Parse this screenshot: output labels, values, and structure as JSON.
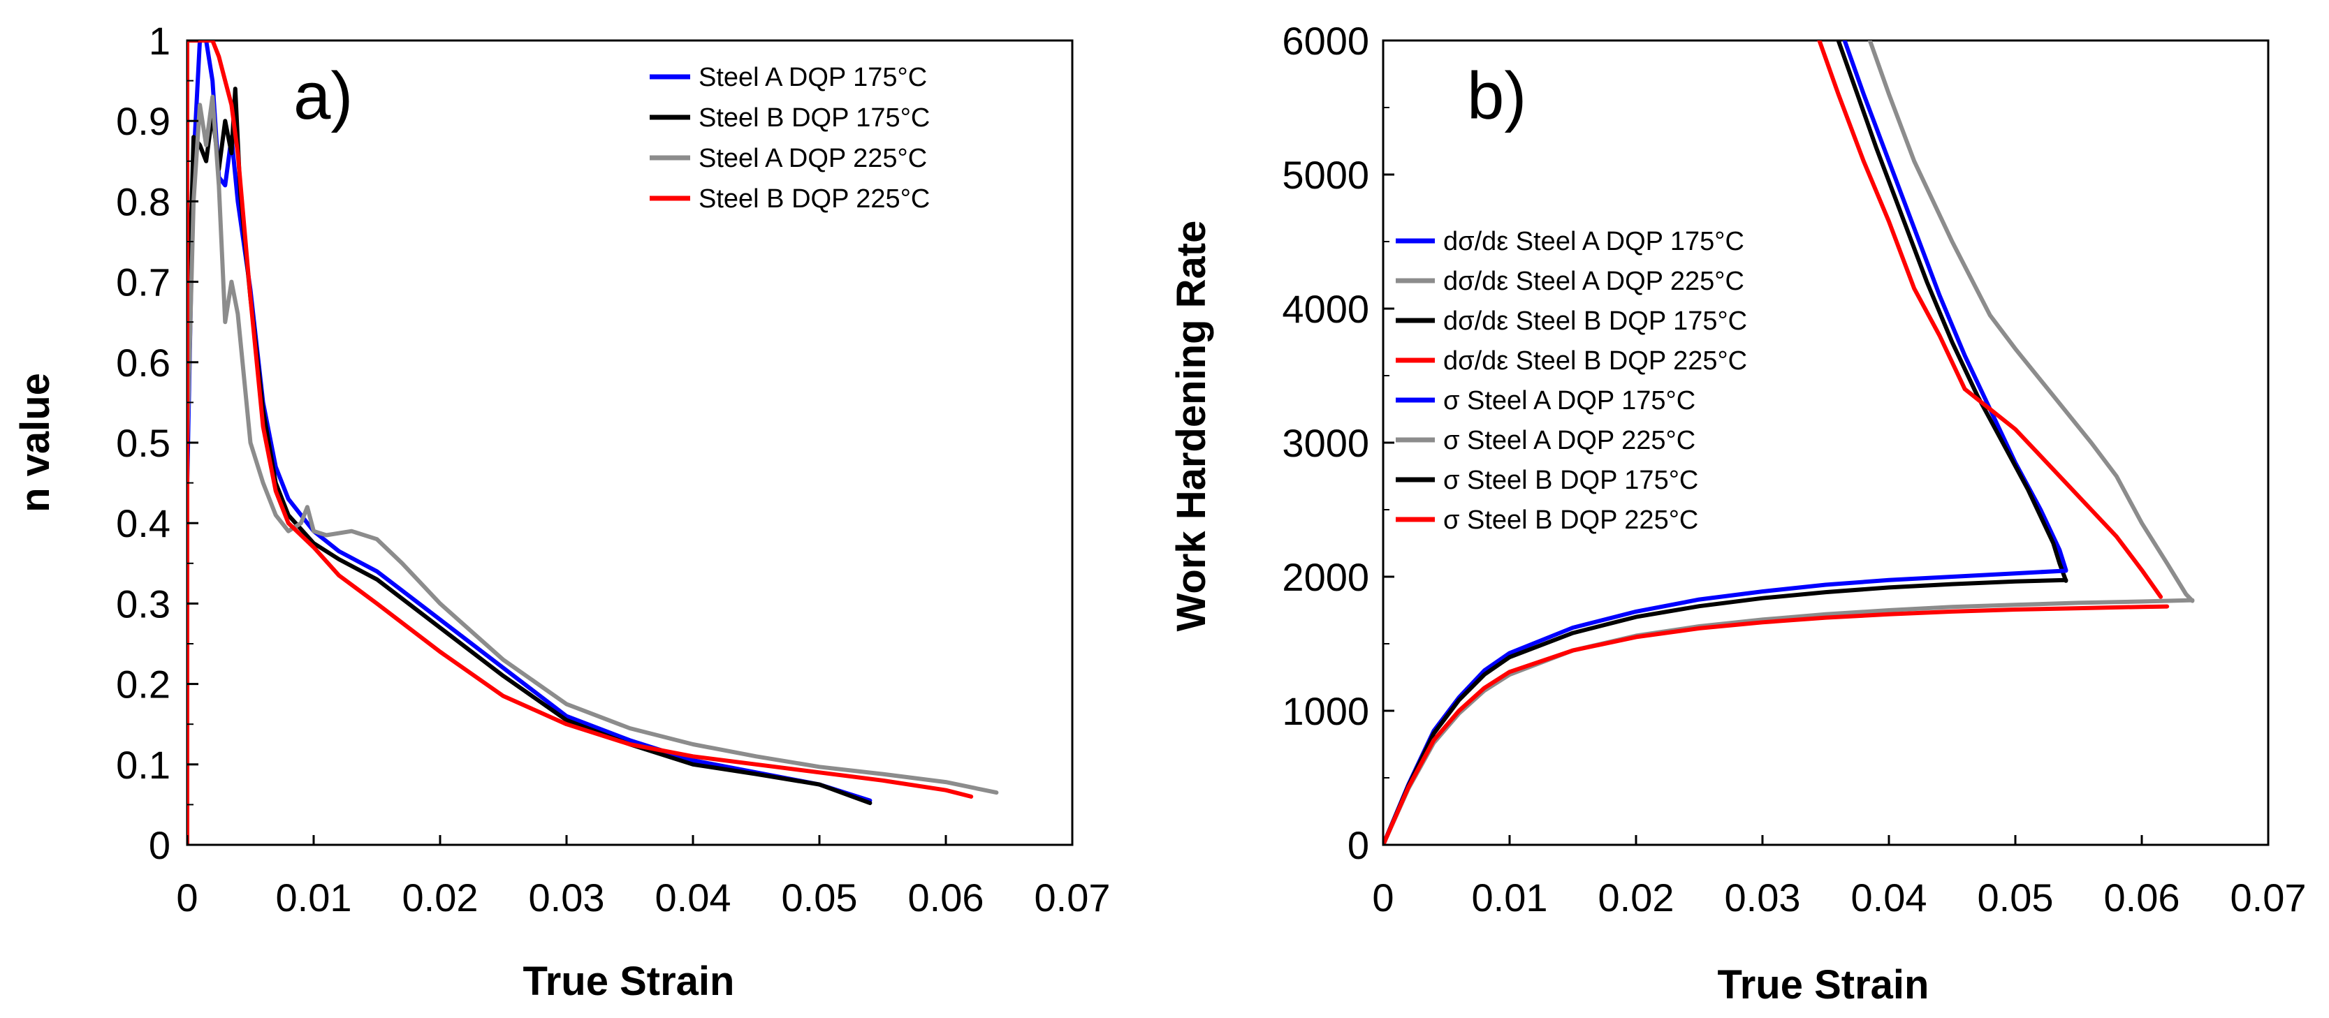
{
  "chart_data": [
    {
      "type": "line",
      "panel_label": "a)",
      "xlabel": "True Strain",
      "ylabel": "n value",
      "xlim": [
        0,
        0.07
      ],
      "ylim": [
        0,
        1
      ],
      "x_ticks": [
        0,
        0.01,
        0.02,
        0.03,
        0.04,
        0.05,
        0.06,
        0.07
      ],
      "x_tick_labels": [
        "0",
        "0.01",
        "0.02",
        "0.03",
        "0.04",
        "0.05",
        "0.06",
        "0.07"
      ],
      "y_ticks": [
        0,
        0.1,
        0.2,
        0.3,
        0.4,
        0.5,
        0.6,
        0.7,
        0.8,
        0.9,
        1
      ],
      "y_tick_labels": [
        "0",
        "0.1",
        "0.2",
        "0.3",
        "0.4",
        "0.5",
        "0.6",
        "0.7",
        "0.8",
        "0.9",
        "1"
      ],
      "legend_position": "top-right",
      "grid": false,
      "series": [
        {
          "name": "Steel A DQP 175°C",
          "color": "#0000ff",
          "points": [
            [
              0,
              0.45
            ],
            [
              0.0005,
              0.85
            ],
            [
              0.001,
              1.0
            ],
            [
              0.0015,
              1.0
            ],
            [
              0.002,
              0.95
            ],
            [
              0.0025,
              0.83
            ],
            [
              0.003,
              0.82
            ],
            [
              0.0035,
              0.88
            ],
            [
              0.004,
              0.8
            ],
            [
              0.005,
              0.69
            ],
            [
              0.006,
              0.55
            ],
            [
              0.007,
              0.47
            ],
            [
              0.008,
              0.43
            ],
            [
              0.01,
              0.39
            ],
            [
              0.012,
              0.365
            ],
            [
              0.015,
              0.34
            ],
            [
              0.02,
              0.28
            ],
            [
              0.025,
              0.22
            ],
            [
              0.03,
              0.16
            ],
            [
              0.035,
              0.13
            ],
            [
              0.04,
              0.105
            ],
            [
              0.045,
              0.09
            ],
            [
              0.05,
              0.075
            ],
            [
              0.054,
              0.055
            ]
          ]
        },
        {
          "name": "Steel B DQP 175°C",
          "color": "#000000",
          "points": [
            [
              0,
              0.6
            ],
            [
              0.0005,
              0.88
            ],
            [
              0.001,
              0.87
            ],
            [
              0.0015,
              0.85
            ],
            [
              0.002,
              0.91
            ],
            [
              0.0025,
              0.84
            ],
            [
              0.003,
              0.9
            ],
            [
              0.0035,
              0.86
            ],
            [
              0.0038,
              0.94
            ],
            [
              0.0042,
              0.81
            ],
            [
              0.005,
              0.68
            ],
            [
              0.006,
              0.54
            ],
            [
              0.007,
              0.45
            ],
            [
              0.008,
              0.41
            ],
            [
              0.01,
              0.375
            ],
            [
              0.012,
              0.355
            ],
            [
              0.015,
              0.33
            ],
            [
              0.02,
              0.27
            ],
            [
              0.025,
              0.21
            ],
            [
              0.03,
              0.155
            ],
            [
              0.035,
              0.125
            ],
            [
              0.04,
              0.1
            ],
            [
              0.045,
              0.088
            ],
            [
              0.05,
              0.075
            ],
            [
              0.054,
              0.052
            ]
          ]
        },
        {
          "name": "Steel A DQP 225°C",
          "color": "#8c8c8c",
          "points": [
            [
              0,
              0.5
            ],
            [
              0.0005,
              0.8
            ],
            [
              0.001,
              0.92
            ],
            [
              0.0015,
              0.87
            ],
            [
              0.002,
              0.93
            ],
            [
              0.0025,
              0.82
            ],
            [
              0.003,
              0.65
            ],
            [
              0.0035,
              0.7
            ],
            [
              0.004,
              0.66
            ],
            [
              0.005,
              0.5
            ],
            [
              0.006,
              0.45
            ],
            [
              0.007,
              0.41
            ],
            [
              0.008,
              0.39
            ],
            [
              0.009,
              0.4
            ],
            [
              0.0095,
              0.42
            ],
            [
              0.01,
              0.39
            ],
            [
              0.011,
              0.385
            ],
            [
              0.013,
              0.39
            ],
            [
              0.015,
              0.38
            ],
            [
              0.017,
              0.35
            ],
            [
              0.02,
              0.3
            ],
            [
              0.025,
              0.23
            ],
            [
              0.03,
              0.175
            ],
            [
              0.035,
              0.145
            ],
            [
              0.04,
              0.125
            ],
            [
              0.045,
              0.11
            ],
            [
              0.05,
              0.097
            ],
            [
              0.055,
              0.088
            ],
            [
              0.06,
              0.078
            ],
            [
              0.064,
              0.065
            ]
          ]
        },
        {
          "name": "Steel B DQP 225°C",
          "color": "#ff0000",
          "points": [
            [
              0,
              0
            ],
            [
              0,
              1.0
            ],
            [
              0.002,
              1.0
            ],
            [
              0.0025,
              0.98
            ],
            [
              0.003,
              0.95
            ],
            [
              0.0035,
              0.92
            ],
            [
              0.004,
              0.86
            ],
            [
              0.005,
              0.68
            ],
            [
              0.006,
              0.52
            ],
            [
              0.007,
              0.44
            ],
            [
              0.008,
              0.4
            ],
            [
              0.01,
              0.37
            ],
            [
              0.012,
              0.335
            ],
            [
              0.015,
              0.3
            ],
            [
              0.02,
              0.24
            ],
            [
              0.025,
              0.185
            ],
            [
              0.03,
              0.15
            ],
            [
              0.035,
              0.125
            ],
            [
              0.04,
              0.11
            ],
            [
              0.045,
              0.1
            ],
            [
              0.05,
              0.09
            ],
            [
              0.055,
              0.08
            ],
            [
              0.06,
              0.068
            ],
            [
              0.062,
              0.06
            ]
          ]
        }
      ]
    },
    {
      "type": "line",
      "panel_label": "b)",
      "xlabel": "True Strain",
      "ylabel": "Work Hardening Rate",
      "xlim": [
        0,
        0.07
      ],
      "ylim": [
        0,
        6000
      ],
      "x_ticks": [
        0,
        0.01,
        0.02,
        0.03,
        0.04,
        0.05,
        0.06,
        0.07
      ],
      "x_tick_labels": [
        "0",
        "0.01",
        "0.02",
        "0.03",
        "0.04",
        "0.05",
        "0.06",
        "0.07"
      ],
      "y_ticks": [
        0,
        1000,
        2000,
        3000,
        4000,
        5000,
        6000
      ],
      "y_tick_labels": [
        "0",
        "1000",
        "2000",
        "3000",
        "4000",
        "5000",
        "6000"
      ],
      "legend_position": "left-center",
      "grid": false,
      "series": [
        {
          "name": "dσ/dε Steel A DQP 175°C",
          "color": "#0000ff",
          "points": [
            [
              0.0365,
              6000
            ],
            [
              0.038,
              5600
            ],
            [
              0.04,
              5100
            ],
            [
              0.042,
              4600
            ],
            [
              0.044,
              4100
            ],
            [
              0.046,
              3650
            ],
            [
              0.048,
              3250
            ],
            [
              0.05,
              2850
            ],
            [
              0.052,
              2500
            ],
            [
              0.0535,
              2200
            ],
            [
              0.054,
              2050
            ]
          ]
        },
        {
          "name": "dσ/dε Steel A DQP 225°C",
          "color": "#8c8c8c",
          "points": [
            [
              0.0385,
              6000
            ],
            [
              0.04,
              5600
            ],
            [
              0.042,
              5100
            ],
            [
              0.045,
              4500
            ],
            [
              0.048,
              3950
            ],
            [
              0.05,
              3700
            ],
            [
              0.053,
              3350
            ],
            [
              0.056,
              3000
            ],
            [
              0.058,
              2750
            ],
            [
              0.06,
              2400
            ],
            [
              0.062,
              2100
            ],
            [
              0.0635,
              1870
            ],
            [
              0.064,
              1820
            ]
          ]
        },
        {
          "name": "dσ/dε Steel B DQP 175°C",
          "color": "#000000",
          "points": [
            [
              0.036,
              6000
            ],
            [
              0.0375,
              5600
            ],
            [
              0.039,
              5200
            ],
            [
              0.041,
              4700
            ],
            [
              0.043,
              4200
            ],
            [
              0.045,
              3750
            ],
            [
              0.047,
              3350
            ],
            [
              0.049,
              3000
            ],
            [
              0.051,
              2650
            ],
            [
              0.053,
              2250
            ],
            [
              0.0535,
              2100
            ],
            [
              0.054,
              1970
            ]
          ]
        },
        {
          "name": "dσ/dε Steel B DQP 225°C",
          "color": "#ff0000",
          "points": [
            [
              0.0345,
              6000
            ],
            [
              0.036,
              5600
            ],
            [
              0.038,
              5100
            ],
            [
              0.04,
              4650
            ],
            [
              0.042,
              4150
            ],
            [
              0.044,
              3800
            ],
            [
              0.046,
              3400
            ],
            [
              0.048,
              3250
            ],
            [
              0.05,
              3100
            ],
            [
              0.052,
              2900
            ],
            [
              0.054,
              2700
            ],
            [
              0.056,
              2500
            ],
            [
              0.058,
              2300
            ],
            [
              0.06,
              2050
            ],
            [
              0.0615,
              1850
            ]
          ]
        },
        {
          "name": "σ Steel A DQP 175°C",
          "color": "#0000ff",
          "points": [
            [
              0,
              0
            ],
            [
              0.002,
              450
            ],
            [
              0.004,
              850
            ],
            [
              0.006,
              1100
            ],
            [
              0.008,
              1300
            ],
            [
              0.01,
              1430
            ],
            [
              0.015,
              1620
            ],
            [
              0.02,
              1740
            ],
            [
              0.025,
              1830
            ],
            [
              0.03,
              1890
            ],
            [
              0.035,
              1940
            ],
            [
              0.04,
              1975
            ],
            [
              0.045,
              2000
            ],
            [
              0.05,
              2025
            ],
            [
              0.054,
              2045
            ]
          ]
        },
        {
          "name": "σ Steel A DQP 225°C",
          "color": "#8c8c8c",
          "points": [
            [
              0,
              0
            ],
            [
              0.002,
              420
            ],
            [
              0.004,
              760
            ],
            [
              0.006,
              980
            ],
            [
              0.008,
              1150
            ],
            [
              0.01,
              1270
            ],
            [
              0.015,
              1450
            ],
            [
              0.02,
              1560
            ],
            [
              0.025,
              1630
            ],
            [
              0.03,
              1680
            ],
            [
              0.035,
              1720
            ],
            [
              0.04,
              1750
            ],
            [
              0.045,
              1775
            ],
            [
              0.05,
              1790
            ],
            [
              0.055,
              1805
            ],
            [
              0.06,
              1815
            ],
            [
              0.064,
              1825
            ]
          ]
        },
        {
          "name": "σ Steel B DQP 175°C",
          "color": "#000000",
          "points": [
            [
              0,
              0
            ],
            [
              0.002,
              440
            ],
            [
              0.004,
              830
            ],
            [
              0.006,
              1080
            ],
            [
              0.008,
              1270
            ],
            [
              0.01,
              1400
            ],
            [
              0.015,
              1580
            ],
            [
              0.02,
              1700
            ],
            [
              0.025,
              1780
            ],
            [
              0.03,
              1840
            ],
            [
              0.035,
              1885
            ],
            [
              0.04,
              1920
            ],
            [
              0.045,
              1945
            ],
            [
              0.05,
              1965
            ],
            [
              0.054,
              1975
            ]
          ]
        },
        {
          "name": "σ Steel B DQP 225°C",
          "color": "#ff0000",
          "points": [
            [
              0,
              0
            ],
            [
              0.002,
              430
            ],
            [
              0.004,
              780
            ],
            [
              0.006,
              1000
            ],
            [
              0.008,
              1170
            ],
            [
              0.01,
              1290
            ],
            [
              0.015,
              1450
            ],
            [
              0.02,
              1550
            ],
            [
              0.025,
              1615
            ],
            [
              0.03,
              1660
            ],
            [
              0.035,
              1695
            ],
            [
              0.04,
              1720
            ],
            [
              0.045,
              1740
            ],
            [
              0.05,
              1755
            ],
            [
              0.055,
              1765
            ],
            [
              0.06,
              1775
            ],
            [
              0.062,
              1778
            ]
          ]
        }
      ]
    }
  ]
}
